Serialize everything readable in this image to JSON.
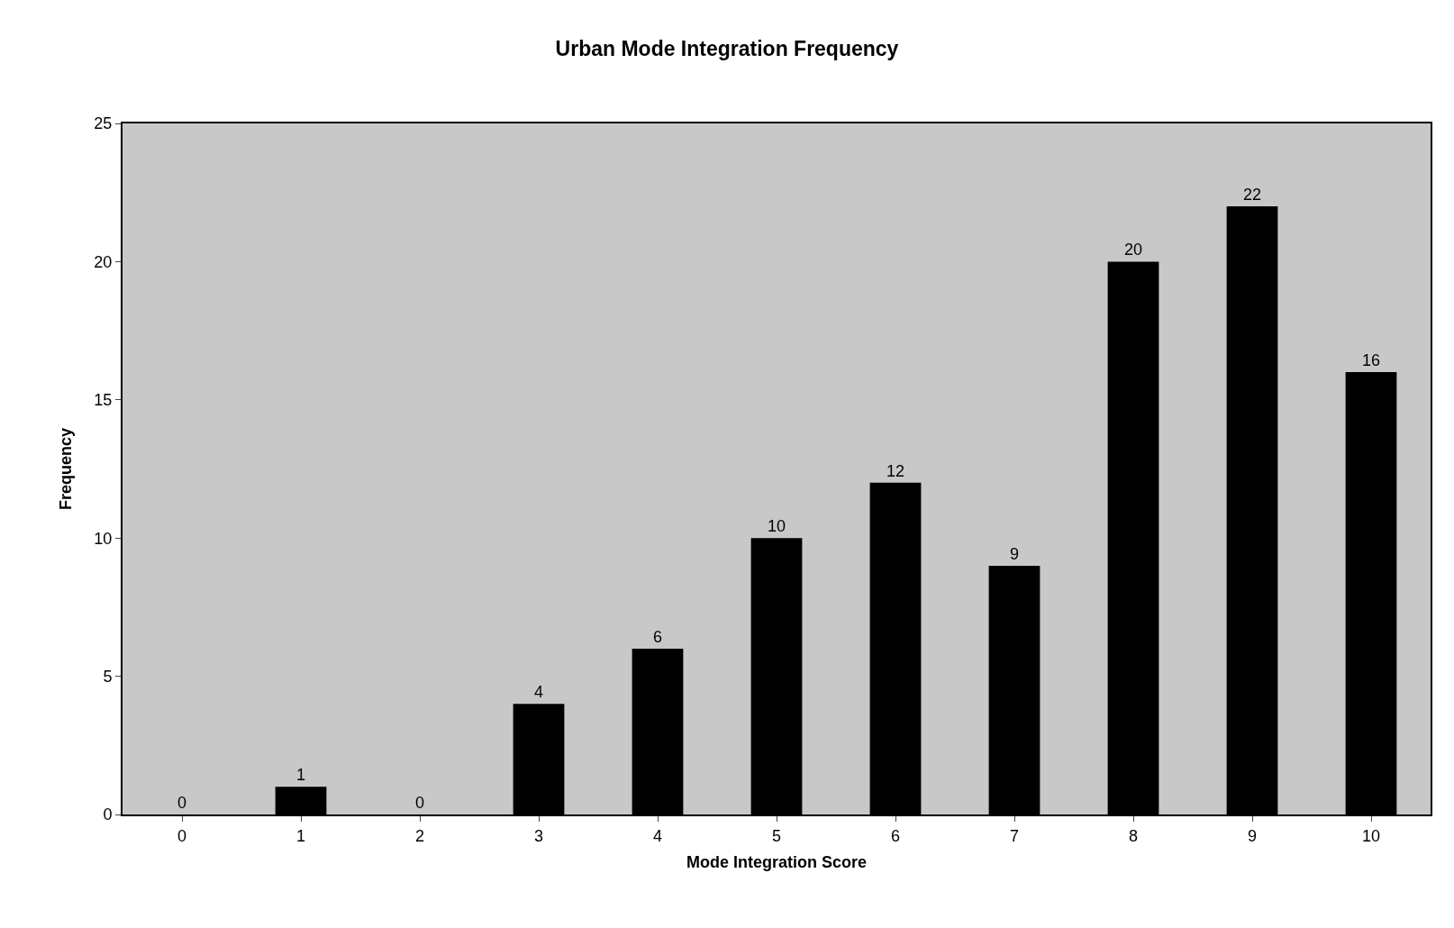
{
  "chart_data": {
    "type": "bar",
    "title": "Urban Mode Integration Frequency",
    "xlabel": "Mode Integration Score",
    "ylabel": "Frequency",
    "categories": [
      "0",
      "1",
      "2",
      "3",
      "4",
      "5",
      "6",
      "7",
      "8",
      "9",
      "10"
    ],
    "values": [
      0,
      1,
      0,
      4,
      6,
      10,
      12,
      9,
      20,
      22,
      16
    ],
    "color": "#000000",
    "ylim": [
      0,
      25
    ],
    "yticks": [
      0,
      5,
      10,
      15,
      20,
      25
    ],
    "grid": false,
    "data_labels": true
  }
}
